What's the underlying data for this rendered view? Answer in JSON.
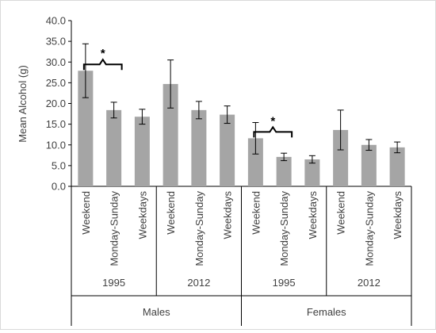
{
  "chart_data": {
    "type": "bar",
    "ylabel": "Mean Alcohol (g)",
    "ylim": [
      0,
      40
    ],
    "yticks": [
      "0.0",
      "5.0",
      "10.0",
      "15.0",
      "20.0",
      "25.0",
      "30.0",
      "35.0",
      "40.0"
    ],
    "categories": [
      "Weekend",
      "Monday-Sunday",
      "Weekdays",
      "Weekend",
      "Monday-Sunday",
      "Weekdays",
      "Weekend",
      "Monday-Sunday",
      "Weekdays",
      "Weekend",
      "Monday-Sunday",
      "Weekdays"
    ],
    "values": [
      27.9,
      18.4,
      16.8,
      24.7,
      18.4,
      17.3,
      11.6,
      7.1,
      6.5,
      13.6,
      10.0,
      9.4
    ],
    "errors": [
      6.5,
      1.9,
      1.8,
      5.8,
      2.1,
      2.1,
      3.8,
      0.9,
      0.9,
      4.8,
      1.3,
      1.3
    ],
    "year_groups": [
      "1995",
      "2012",
      "1995",
      "2012"
    ],
    "sex_groups": [
      "Males",
      "Females"
    ],
    "significance": [
      {
        "from": 0,
        "to": 1,
        "label": "*"
      },
      {
        "from": 6,
        "to": 7,
        "label": "*"
      }
    ],
    "bar_color": "#a5a5a5",
    "grid": false,
    "legend": "none"
  }
}
